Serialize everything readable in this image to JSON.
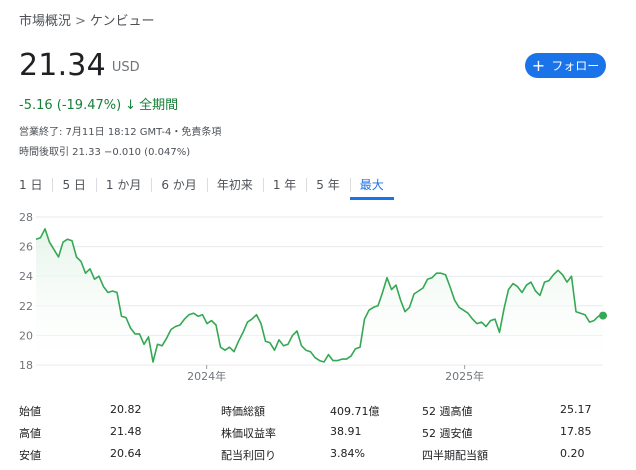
{
  "breadcrumb": {
    "parent": "市場概況",
    "separator": ">",
    "current": "ケンビュー"
  },
  "quote": {
    "price": "21.34",
    "currency": "USD",
    "change": "-5.16 (-19.47%)",
    "change_arrow": "↓",
    "period": "全期間",
    "close_info": "営業終了: 7月11日 18:12 GMT-4・免責条項",
    "after_hours": "時間後取引 21.33 −0.010 (0.047%)"
  },
  "follow_button": {
    "icon": "plus-icon",
    "label": "フォロー"
  },
  "tabs": [
    {
      "label": "1 日",
      "active": false
    },
    {
      "label": "5 日",
      "active": false
    },
    {
      "label": "1 か月",
      "active": false
    },
    {
      "label": "6 か月",
      "active": false
    },
    {
      "label": "年初来",
      "active": false
    },
    {
      "label": "1 年",
      "active": false
    },
    {
      "label": "5 年",
      "active": false
    },
    {
      "label": "最大",
      "active": true
    }
  ],
  "colors": {
    "line": "#34a853",
    "fill": "#e6f4ea",
    "accent": "#1a73e8",
    "negative": "#188038"
  },
  "chart_data": {
    "type": "area",
    "yticks": [
      "28",
      "26",
      "24",
      "22",
      "20",
      "18"
    ],
    "ylim": [
      18,
      28
    ],
    "xticks": [
      {
        "label": "2024年",
        "t": 0.301
      },
      {
        "label": "2025年",
        "t": 0.756
      }
    ],
    "grid": true,
    "y": [
      26.5,
      26.6,
      27.2,
      26.3,
      25.8,
      25.3,
      26.3,
      26.5,
      26.4,
      25.3,
      25.0,
      24.2,
      24.5,
      23.8,
      24.0,
      23.3,
      22.9,
      23.0,
      22.9,
      21.3,
      21.2,
      20.5,
      20.1,
      20.1,
      19.4,
      19.9,
      18.2,
      19.4,
      19.3,
      19.8,
      20.4,
      20.6,
      20.7,
      21.1,
      21.4,
      21.5,
      21.3,
      21.4,
      20.8,
      21.0,
      20.7,
      19.2,
      19.0,
      19.2,
      18.9,
      19.6,
      20.2,
      20.9,
      21.1,
      21.4,
      20.8,
      19.6,
      19.5,
      19.0,
      19.7,
      19.3,
      19.4,
      20.0,
      20.3,
      19.3,
      19.0,
      18.9,
      18.5,
      18.3,
      18.2,
      18.7,
      18.3,
      18.3,
      18.4,
      18.4,
      18.6,
      19.1,
      19.2,
      21.1,
      21.7,
      21.9,
      22.0,
      22.9,
      23.9,
      23.1,
      23.4,
      22.4,
      21.6,
      21.9,
      22.8,
      23.0,
      23.2,
      23.8,
      23.9,
      24.2,
      24.2,
      24.1,
      23.3,
      22.4,
      21.9,
      21.7,
      21.5,
      21.1,
      20.8,
      20.9,
      20.6,
      21.0,
      21.1,
      20.2,
      21.8,
      23.1,
      23.5,
      23.3,
      22.9,
      23.4,
      23.6,
      23.0,
      22.7,
      23.6,
      23.7,
      24.1,
      24.4,
      24.1,
      23.6,
      24.0,
      21.6,
      21.5,
      21.4,
      20.9,
      21.0,
      21.3,
      21.34
    ]
  },
  "stats": [
    {
      "l1": "始値",
      "v1": "20.82",
      "l2": "時価総額",
      "v2": "409.71億",
      "l3": "52 週高値",
      "v3": "25.17"
    },
    {
      "l1": "高値",
      "v1": "21.48",
      "l2": "株価収益率",
      "v2": "38.91",
      "l3": "52 週安値",
      "v3": "17.85"
    },
    {
      "l1": "安値",
      "v1": "20.64",
      "l2": "配当利回り",
      "v2": "3.84%",
      "l3": "四半期配当額",
      "v3": "0.20"
    }
  ]
}
